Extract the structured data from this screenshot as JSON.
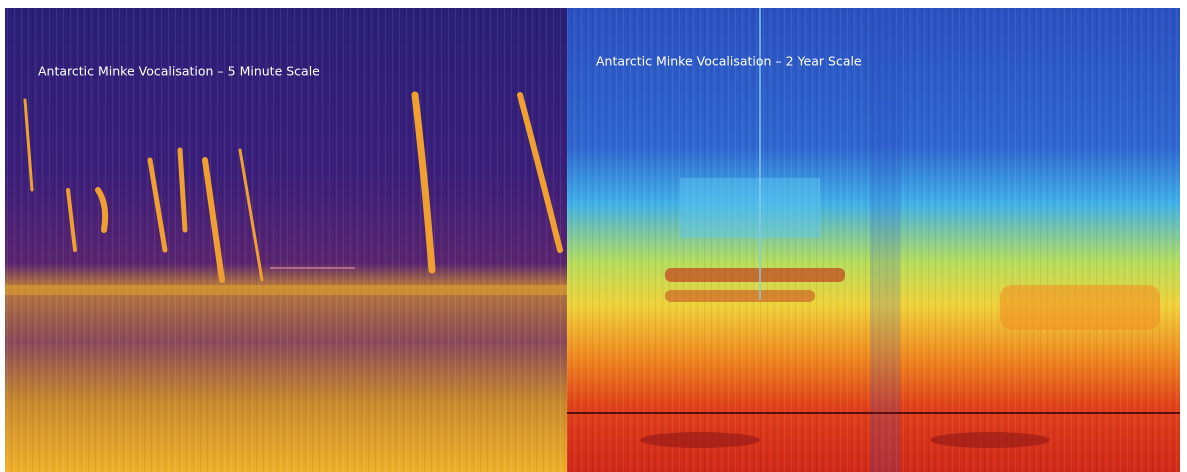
{
  "panels": [
    {
      "title": "Antarctic Minke Vocalisation – 5 Minute Scale"
    },
    {
      "title": "Antarctic Minke Vocalisation – 2 Year Scale"
    }
  ]
}
